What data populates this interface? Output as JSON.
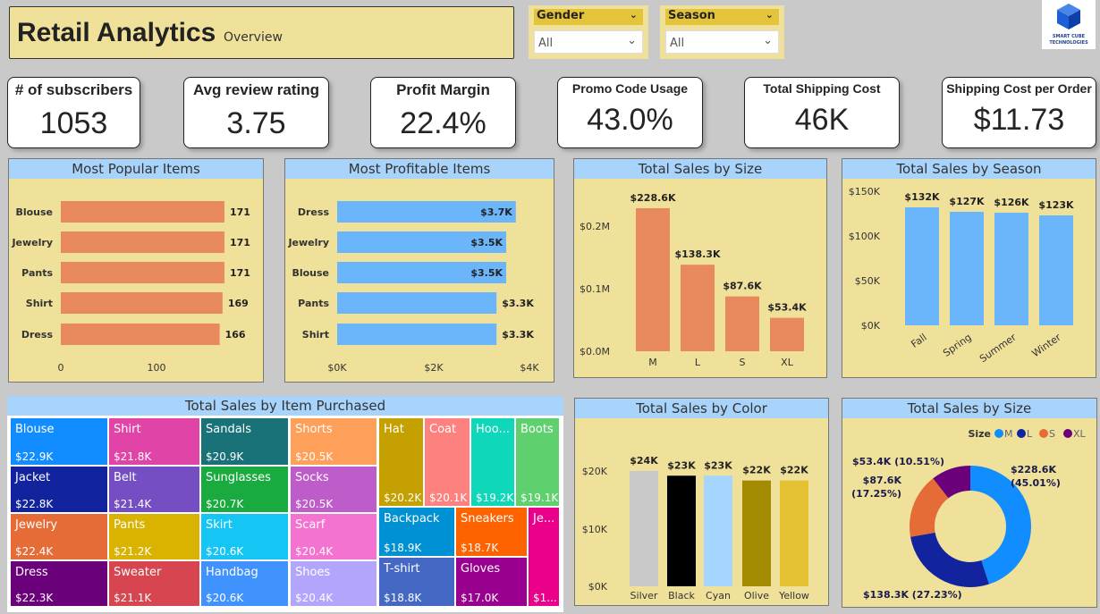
{
  "header": {
    "title": "Retail Analytics",
    "subtitle": "Overview"
  },
  "slicers": [
    {
      "label": "Gender",
      "value": "All"
    },
    {
      "label": "Season",
      "value": "All"
    }
  ],
  "logo": {
    "text": "SMART CUBE TECHNOLOGIES",
    "color": "#1f5fd6"
  },
  "kpis": [
    {
      "label": "# of subscribers",
      "value": "1053"
    },
    {
      "label": "Avg review rating",
      "value": "3.75"
    },
    {
      "label": "Profit Margin",
      "value": "22.4%"
    },
    {
      "label": "Promo Code Usage",
      "value": "43.0%"
    },
    {
      "label": "Total Shipping Cost",
      "value": "46K"
    },
    {
      "label": "Shipping Cost per Order",
      "value": "$11.73"
    }
  ],
  "chart_data": [
    {
      "type": "bar",
      "orientation": "horizontal",
      "title": "Most Popular Items",
      "categories": [
        "Blouse",
        "Jewelry",
        "Pants",
        "Shirt",
        "Dress"
      ],
      "values": [
        171,
        171,
        171,
        169,
        166
      ],
      "data_labels": [
        "171",
        "171",
        "171",
        "169",
        "166"
      ],
      "xticks": [
        "0",
        "100"
      ],
      "xlim": [
        0,
        200
      ],
      "color": "#e9895e"
    },
    {
      "type": "bar",
      "orientation": "horizontal",
      "title": "Most Profitable Items",
      "categories": [
        "Dress",
        "Jewelry",
        "Blouse",
        "Pants",
        "Shirt"
      ],
      "values": [
        3.7,
        3.5,
        3.5,
        3.3,
        3.3
      ],
      "data_labels": [
        "$3.7K",
        "$3.5K",
        "$3.5K",
        "$3.3K",
        "$3.3K"
      ],
      "xticks": [
        "$0K",
        "$2K",
        "$4K"
      ],
      "xlim": [
        0,
        4
      ],
      "unit": "$K",
      "color": "#6bb6fb"
    },
    {
      "type": "bar",
      "title": "Total Sales by Size",
      "categories": [
        "M",
        "L",
        "S",
        "XL"
      ],
      "values": [
        228.6,
        138.3,
        87.6,
        53.4
      ],
      "data_labels": [
        "$228.6K",
        "$138.3K",
        "$87.6K",
        "$53.4K"
      ],
      "yticks": [
        "$0.0M",
        "$0.1M",
        "$0.2M"
      ],
      "unit": "$K",
      "color": "#e9895e"
    },
    {
      "type": "bar",
      "title": "Total Sales by Season",
      "categories": [
        "Fall",
        "Spring",
        "Summer",
        "Winter"
      ],
      "values": [
        132,
        127,
        126,
        123
      ],
      "data_labels": [
        "$132K",
        "$127K",
        "$126K",
        "$123K"
      ],
      "yticks": [
        "$0K",
        "$50K",
        "$100K",
        "$150K"
      ],
      "unit": "$K",
      "color": "#6bb6fb"
    },
    {
      "type": "treemap",
      "title": "Total Sales by Item Purchased",
      "items": [
        {
          "name": "Blouse",
          "value": "$22.9K",
          "color": "#118dff"
        },
        {
          "name": "Jacket",
          "value": "$22.8K",
          "color": "#12239e"
        },
        {
          "name": "Jewelry",
          "value": "$22.4K",
          "color": "#e66c37"
        },
        {
          "name": "Dress",
          "value": "$22.3K",
          "color": "#6b007b"
        },
        {
          "name": "Shirt",
          "value": "$21.8K",
          "color": "#e044a7"
        },
        {
          "name": "Belt",
          "value": "$21.4K",
          "color": "#744ec2"
        },
        {
          "name": "Pants",
          "value": "$21.2K",
          "color": "#d9b300"
        },
        {
          "name": "Sweater",
          "value": "$21.1K",
          "color": "#d64550"
        },
        {
          "name": "Sandals",
          "value": "$20.9K",
          "color": "#197278"
        },
        {
          "name": "Sunglasses",
          "value": "$20.7K",
          "color": "#1aab40"
        },
        {
          "name": "Skirt",
          "value": "$20.6K",
          "color": "#15c6f4"
        },
        {
          "name": "Handbag",
          "value": "$20.6K",
          "color": "#4092ff"
        },
        {
          "name": "Shorts",
          "value": "$20.5K",
          "color": "#fe9f5a"
        },
        {
          "name": "Socks",
          "value": "$20.5K",
          "color": "#be5dc9"
        },
        {
          "name": "Scarf",
          "value": "$20.4K",
          "color": "#f472d0"
        },
        {
          "name": "Shoes",
          "value": "$20.4K",
          "color": "#b3a4fc"
        },
        {
          "name": "Hat",
          "value": "$20.2K",
          "color": "#c4a000"
        },
        {
          "name": "Coat",
          "value": "$20.1K",
          "color": "#fd817e"
        },
        {
          "name": "Hoo...",
          "value": "$19.2K",
          "color": "#0fd7b9"
        },
        {
          "name": "Boots",
          "value": "$19.1K",
          "color": "#5ed06d"
        },
        {
          "name": "Backpack",
          "value": "$18.9K",
          "color": "#0091d5"
        },
        {
          "name": "T-shirt",
          "value": "$18.8K",
          "color": "#4668c5"
        },
        {
          "name": "Sneakers",
          "value": "$18.7K",
          "color": "#ff6300"
        },
        {
          "name": "Gloves",
          "value": "$17.0K",
          "color": "#9a008f"
        },
        {
          "name": "Je...",
          "value": "$1...",
          "color": "#ea008b"
        }
      ]
    },
    {
      "type": "bar",
      "title": "Total Sales by Color",
      "categories": [
        "Silver",
        "Black",
        "Cyan",
        "Olive",
        "Yellow"
      ],
      "values": [
        24,
        23,
        23,
        22,
        22
      ],
      "data_labels": [
        "$24K",
        "$23K",
        "$23K",
        "$22K",
        "$22K"
      ],
      "yticks": [
        "$0K",
        "$10K",
        "$20K"
      ],
      "unit": "$K",
      "colors": [
        "#c8c8c8",
        "#000000",
        "#a5d6ff",
        "#a38a00",
        "#e5c233"
      ]
    },
    {
      "type": "pie",
      "donut": true,
      "title": "Total Sales by Size",
      "legend_title": "Size",
      "legend_position": "top-right",
      "categories": [
        "M",
        "L",
        "S",
        "XL"
      ],
      "values": [
        228.6,
        138.3,
        87.6,
        53.4
      ],
      "percents": [
        45.01,
        27.23,
        17.25,
        10.51
      ],
      "data_labels": [
        "$228.6K (45.01%)",
        "$138.3K (27.23%)",
        "$87.6K (17.25%)",
        "$53.4K (10.51%)"
      ],
      "colors": [
        "#118dff",
        "#12239e",
        "#e66c37",
        "#6b007b"
      ]
    }
  ]
}
